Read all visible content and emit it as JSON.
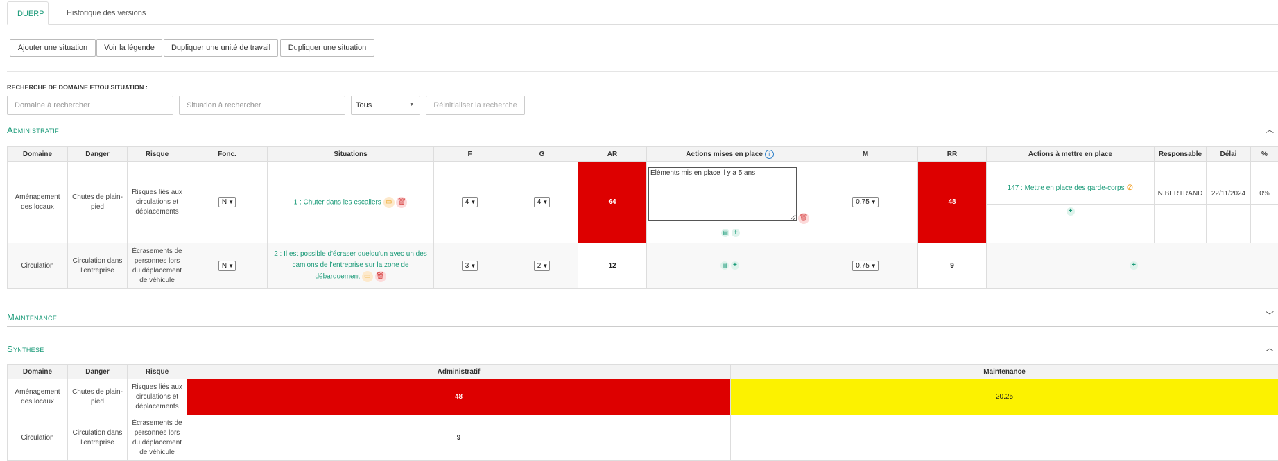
{
  "tabs": [
    {
      "label": "DUERP"
    },
    {
      "label": "Historique des versions"
    }
  ],
  "toolbar": {
    "add_situation": "Ajouter une situation",
    "view_legend": "Voir la légende",
    "duplicate_unit": "Dupliquer une unité de travail",
    "duplicate_situation": "Dupliquer une situation"
  },
  "search": {
    "label": "RECHERCHE DE DOMAINE ET/OU SITUATION :",
    "domain_placeholder": "Domaine à rechercher",
    "situation_placeholder": "Situation à rechercher",
    "filter_value": "Tous",
    "reset_label": "Réinitialiser la recherche"
  },
  "sections": {
    "administratif": "Administratif",
    "maintenance": "Maintenance",
    "synthese": "Synthèse"
  },
  "admin_table": {
    "headers": [
      "Domaine",
      "Danger",
      "Risque",
      "Fonc.",
      "Situations",
      "F",
      "G",
      "AR",
      "Actions mises en place",
      "M",
      "RR",
      "Actions à mettre en place",
      "Responsable",
      "Délai",
      "%"
    ],
    "rows": [
      {
        "domaine": "Aménagement des locaux",
        "danger": "Chutes de plain-pied",
        "risque": "Risques liés aux circulations et déplacements",
        "fonc": "N",
        "situation": "1 : Chuter dans les escaliers",
        "f": "4",
        "g": "4",
        "ar": "64",
        "actions_done": "Eléments mis en place il y a 5 ans",
        "m": "0.75",
        "rr": "48",
        "action_todo": "147 : Mettre en place des garde-corps",
        "responsable": "N.BERTRAND",
        "delai": "22/11/2024",
        "pct": "0%"
      },
      {
        "domaine": "Circulation",
        "danger": "Circulation dans l'entreprise",
        "risque": "Écrasements de personnes lors du déplacement de véhicule",
        "fonc": "N",
        "situation": "2 : Il est possible d'écraser quelqu'un avec un des camions de l'entreprise sur la zone de débarquement",
        "f": "3",
        "g": "2",
        "ar": "12",
        "m": "0.75",
        "rr": "9"
      }
    ]
  },
  "synth_table": {
    "headers": [
      "Domaine",
      "Danger",
      "Risque",
      "Administratif",
      "Maintenance"
    ],
    "rows": [
      {
        "domaine": "Aménagement des locaux",
        "danger": "Chutes de plain-pied",
        "risque": "Risques liés aux circulations et déplacements",
        "admin": "48",
        "maint": "20.25"
      },
      {
        "domaine": "Circulation",
        "danger": "Circulation dans l'entreprise",
        "risque": "Écrasements de personnes lors du déplacement de véhicule",
        "admin": "9",
        "maint": ""
      }
    ]
  },
  "icons": {
    "folder": "folder-icon",
    "trash": "trash-icon",
    "add": "add-icon",
    "comment": "comment-icon",
    "info": "info-icon",
    "forbidden": "forbidden-icon",
    "chevron_up": "chevron-up-icon",
    "chevron_down": "chevron-down-icon"
  },
  "colors": {
    "accent": "#1a9a78",
    "risk_high": "#dd0000",
    "risk_medium": "#fcf200"
  }
}
